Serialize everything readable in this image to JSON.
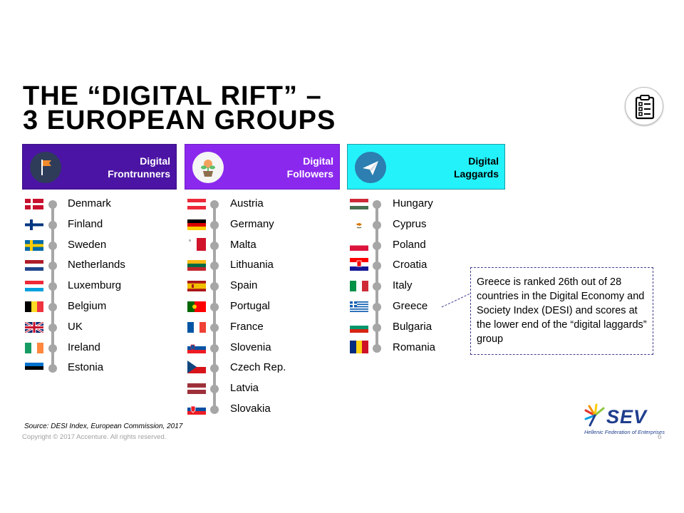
{
  "slide": {
    "title_line1": "THE “DIGITAL RIFT” –",
    "title_line2": "3 EUROPEAN GROUPS",
    "icon": "clipboard-checklist-icon"
  },
  "groups": [
    {
      "line1": "Digital",
      "line2": "Frontrunners",
      "icon": "flag-icon",
      "color": "#4b14a4",
      "countries": [
        "Denmark",
        "Finland",
        "Sweden",
        "Netherlands",
        "Luxemburg",
        "Belgium",
        "UK",
        "Ireland",
        "Estonia"
      ]
    },
    {
      "line1": "Digital",
      "line2": "Followers",
      "icon": "potted-plant-icon",
      "color": "#8b28ee",
      "countries": [
        "Austria",
        "Germany",
        "Malta",
        "Lithuania",
        "Spain",
        "Portugal",
        "France",
        "Slovenia",
        "Czech Rep.",
        "Latvia",
        "Slovakia"
      ]
    },
    {
      "line1": "Digital",
      "line2": "Laggards",
      "icon": "paper-plane-icon",
      "color": "#23f2fa",
      "countries": [
        "Hungary",
        "Cyprus",
        "Poland",
        "Croatia",
        "Italy",
        "Greece",
        "Bulgaria",
        "Romania"
      ]
    }
  ],
  "callout": {
    "text": "Greece is ranked 26th out of 28 countries in the Digital Economy and Society Index (DESI) and scores at the lower end of the “digital laggards” group"
  },
  "footer": {
    "source": "Source: DESI Index, European Commission, 2017",
    "copyright": "Copyright © 2017 Accenture. All rights reserved.",
    "page": "6"
  },
  "logo": {
    "word": "SEV",
    "tagline": "Hellenic Federation of Enterprises"
  }
}
